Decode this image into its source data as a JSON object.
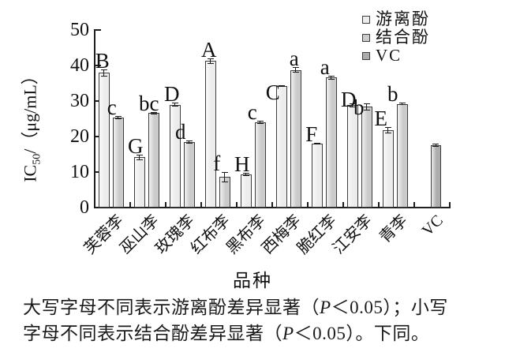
{
  "chart_data": {
    "type": "bar",
    "title": "",
    "xlabel": "品种",
    "ylabel_prefix": "IC",
    "ylabel_sub": "50",
    "ylabel_suffix": "/（μg/mL）",
    "ylim": [
      0,
      50
    ],
    "yticks": [
      0,
      10,
      20,
      30,
      40,
      50
    ],
    "grid": false,
    "legend_position": "top-right",
    "series": [
      {
        "name": "游离酚",
        "color": "#ececec"
      },
      {
        "name": "结合酚",
        "color": "#cbcbcb"
      },
      {
        "name": "VC",
        "color": "#adadad"
      }
    ],
    "categories": [
      "芙蓉李",
      "巫山李",
      "玫瑰李",
      "红布李",
      "黑布李",
      "西梅李",
      "脆红李",
      "江安李",
      "青李",
      "VC"
    ],
    "groups": [
      {
        "category": "芙蓉李",
        "bars": [
          {
            "series": "游离酚",
            "value": 37.9,
            "err": 0.9,
            "letter": "B",
            "dx": -2,
            "dy": 0
          },
          {
            "series": "结合酚",
            "value": 25.3,
            "err": 0.5,
            "letter": "c",
            "dx": -8,
            "dy": 0
          }
        ]
      },
      {
        "category": "巫山李",
        "bars": [
          {
            "series": "游离酚",
            "value": 14.2,
            "err": 0.8,
            "letter": "G",
            "dx": -5,
            "dy": 0
          },
          {
            "series": "结合酚",
            "value": 26.6,
            "err": 0.4,
            "letter": "bc",
            "dx": -6,
            "dy": 0
          }
        ]
      },
      {
        "category": "玫瑰李",
        "bars": [
          {
            "series": "游离酚",
            "value": 29.0,
            "err": 0.5,
            "letter": "D",
            "dx": -4,
            "dy": 0
          },
          {
            "series": "结合酚",
            "value": 18.5,
            "err": 0.5,
            "letter": "d",
            "dx": -11,
            "dy": 0
          }
        ]
      },
      {
        "category": "红布李",
        "bars": [
          {
            "series": "游离酚",
            "value": 41.3,
            "err": 0.8,
            "letter": "A",
            "dx": -2,
            "dy": 0
          },
          {
            "series": "结合酚",
            "value": 8.6,
            "err": 1.5,
            "letter": "f",
            "dx": -10,
            "dy": 0
          }
        ]
      },
      {
        "category": "黑布李",
        "bars": [
          {
            "series": "游离酚",
            "value": 9.4,
            "err": 0.4,
            "letter": "H",
            "dx": -5,
            "dy": 0
          },
          {
            "series": "结合酚",
            "value": 24.0,
            "err": 0.4,
            "letter": "c",
            "dx": -10,
            "dy": 0
          }
        ]
      },
      {
        "category": "西梅李",
        "bars": [
          {
            "series": "游离酚",
            "value": 34.2,
            "err": 0.3,
            "letter": "C",
            "dx": -11,
            "dy": 20
          },
          {
            "series": "结合酚",
            "value": 38.7,
            "err": 0.8,
            "letter": "a",
            "dx": -2,
            "dy": 0
          }
        ]
      },
      {
        "category": "脆红李",
        "bars": [
          {
            "series": "游离酚",
            "value": 18.0,
            "err": 0.3,
            "letter": "F",
            "dx": -7,
            "dy": 0
          },
          {
            "series": "结合酚",
            "value": 36.6,
            "err": 0.5,
            "letter": "a",
            "dx": -8,
            "dy": 0
          }
        ]
      },
      {
        "category": "江安李",
        "bars": [
          {
            "series": "游离酚",
            "value": 28.8,
            "err": 0.5,
            "letter": "D",
            "dx": -5,
            "dy": 6
          },
          {
            "series": "结合酚",
            "value": 28.4,
            "err": 1.0,
            "letter": "b",
            "dx": -10,
            "dy": 16
          }
        ]
      },
      {
        "category": "青李",
        "bars": [
          {
            "series": "游离酚",
            "value": 21.8,
            "err": 0.8,
            "letter": "E",
            "dx": -9,
            "dy": 0
          },
          {
            "series": "结合酚",
            "value": 29.2,
            "err": 0.3,
            "letter": "b",
            "dx": -12,
            "dy": 0
          }
        ]
      },
      {
        "category": "VC",
        "bars": [
          {
            "series": "VC",
            "value": 17.5,
            "err": 0.4,
            "letter": "",
            "dx": 0,
            "dy": 0
          }
        ]
      }
    ]
  },
  "caption": {
    "line1": [
      {
        "text": "大写字母不同表示游离酚差异显著（",
        "italic": false
      },
      {
        "text": "P",
        "italic": true
      },
      {
        "text": "＜0.05）；小写",
        "italic": false
      }
    ],
    "line2": [
      {
        "text": "字母不同表示结合酚差异显著（",
        "italic": false
      },
      {
        "text": "P",
        "italic": true
      },
      {
        "text": "＜0.05）。下同。",
        "italic": false
      }
    ]
  }
}
